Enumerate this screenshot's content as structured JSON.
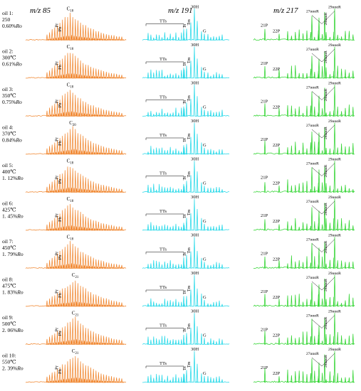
{
  "chart_data": {
    "type": "line",
    "title": "",
    "columns": [
      {
        "label": "m/z 85",
        "color": "#F0852D"
      },
      {
        "label": "m/z 191",
        "color": "#22D8E8"
      },
      {
        "label": "m/z 217",
        "color": "#2ED42E"
      }
    ],
    "samples": [
      {
        "name": "oil 1:",
        "temp": "250",
        "ro": "0.60%Ro",
        "carbon_peak": "C18",
        "tts": "TTs",
        "h30": "30H",
        "g": "G",
        "p21": "21P",
        "p22": "22P",
        "s27": "27αααR",
        "s28": "28αααR",
        "s29": "29αααR"
      },
      {
        "name": "oil 2:",
        "temp": "300℃",
        "ro": "0.61%Ro",
        "carbon_peak": "C18",
        "tts": "TTs",
        "h30": "30H",
        "g": "G",
        "p21": "21P",
        "p22": "22P",
        "s27": "27αααR",
        "s28": "28αααR",
        "s29": "29αααR"
      },
      {
        "name": "oil 3:",
        "temp": "350℃",
        "ro": "0.75%Ro",
        "carbon_peak": "C18",
        "tts": "TTs",
        "h30": "30H",
        "g": "G",
        "p21": "21P",
        "p22": "22P",
        "s27": "27αααR",
        "s28": "28αααR",
        "s29": "29αααR"
      },
      {
        "name": "oil 4:",
        "temp": "370℃",
        "ro": "0.84%Ro",
        "carbon_peak": "C20",
        "tts": "TTs",
        "h30": "30H",
        "g": "G",
        "p21": "21P",
        "p22": "22P",
        "s27": "27αααR",
        "s28": "28αααR",
        "s29": "29αααR"
      },
      {
        "name": "oil 5:",
        "temp": "400℃",
        "ro": "1. 12%Ro",
        "carbon_peak": "C18",
        "tts": "TTs",
        "h30": "30H",
        "g": "G",
        "p21": "21P",
        "p22": "22P",
        "s27": "27αααR",
        "s28": "28αααR",
        "s29": "29αααR"
      },
      {
        "name": "oil 6:",
        "temp": "425℃",
        "ro": "1. 45%Ro",
        "carbon_peak": "C18",
        "tts": "TTs",
        "h30": "30H",
        "g": "G",
        "p21": "21P",
        "p22": "22P",
        "s27": "27αααR",
        "s28": "28αααR",
        "s29": "29αααR"
      },
      {
        "name": "oil 7:",
        "temp": "450℃",
        "ro": "1. 79%Ro",
        "carbon_peak": "C18",
        "tts": "TTs",
        "h30": "30H",
        "g": "G",
        "p21": "21P",
        "p22": "22P",
        "s27": "27αααR",
        "s28": "28αααR",
        "s29": "29αααR"
      },
      {
        "name": "oil 8:",
        "temp": "475℃",
        "ro": "1. 83%Ro",
        "carbon_peak": "C21",
        "tts": "TTs",
        "h30": "30H",
        "g": "G",
        "p21": "21P",
        "p22": "22P",
        "s27": "27αααR",
        "s28": "28αααR",
        "s29": "29αααR"
      },
      {
        "name": "oil 9:",
        "temp": "500℃",
        "ro": "2. 06%Ro",
        "carbon_peak": "C21",
        "tts": "TTs",
        "h30": "30H",
        "g": "G",
        "p21": "21P",
        "p22": "22P",
        "s27": "27αααR",
        "s28": "28αααR",
        "s29": "29αααR"
      },
      {
        "name": "oil 10:",
        "temp": "550℃",
        "ro": "2. 39%Ro",
        "carbon_peak": "C21",
        "tts": "TTs",
        "h30": "30H",
        "g": "G",
        "p21": "21P",
        "p22": "22P",
        "s27": "27αααR",
        "s28": "28αααR",
        "s29": "29αααR"
      }
    ]
  }
}
